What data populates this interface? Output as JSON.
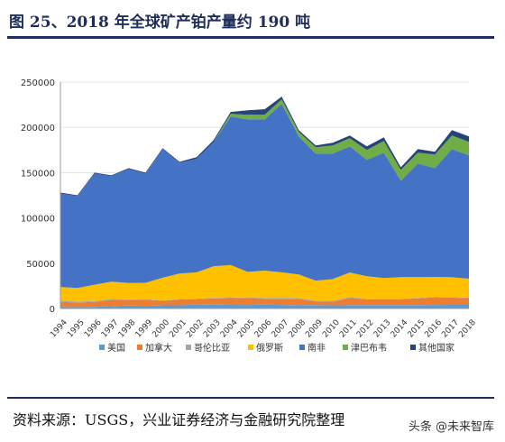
{
  "title": "图 25、2018 年全球矿产铂产量约 190 吨",
  "source": "资料来源：USGS，兴业证券经济与金融研究院整理",
  "watermark": "头条 @未来智库",
  "colors": {
    "series": [
      "#5b9bd5",
      "#ed7d31",
      "#a5a5a5",
      "#ffc000",
      "#4472c4",
      "#70ad47",
      "#264478"
    ]
  },
  "chart_data": {
    "type": "area",
    "stacked": true,
    "x": [
      "1994",
      "1995",
      "1996",
      "1997",
      "1998",
      "1999",
      "2000",
      "2001",
      "2002",
      "2003",
      "2004",
      "2005",
      "2006",
      "2007",
      "2008",
      "2009",
      "2010",
      "2011",
      "2012",
      "2013",
      "2014",
      "2015",
      "2016",
      "2017",
      "2018"
    ],
    "ylim": [
      0,
      250000
    ],
    "yticks": [
      0,
      50000,
      100000,
      150000,
      200000,
      250000
    ],
    "ytick_labels": [
      "0",
      "50000",
      "100000",
      "150000",
      "200000",
      "250000"
    ],
    "legend_position": "bottom",
    "series": [
      {
        "name": "美国",
        "values": [
          1800,
          1600,
          1800,
          2600,
          3200,
          2900,
          3500,
          3500,
          4400,
          4200,
          4000,
          3900,
          4300,
          3900,
          3600,
          3800,
          3500,
          3700,
          3700,
          3700,
          3700,
          3700,
          3900,
          4000,
          4000
        ]
      },
      {
        "name": "加拿大",
        "values": [
          5500,
          5000,
          5500,
          7000,
          6500,
          7000,
          5000,
          6500,
          6000,
          7000,
          7500,
          8000,
          6500,
          7000,
          7000,
          4000,
          4000,
          8000,
          6500,
          6500,
          6500,
          7500,
          8500,
          8000,
          7500
        ]
      },
      {
        "name": "哥伦比亚",
        "values": [
          1500,
          1000,
          1000,
          1000,
          500,
          500,
          500,
          500,
          500,
          500,
          500,
          500,
          1000,
          1000,
          1000,
          1000,
          1000,
          1000,
          500,
          500,
          500,
          500,
          500,
          500,
          500
        ]
      },
      {
        "name": "俄罗斯",
        "values": [
          15000,
          15000,
          18000,
          19000,
          18000,
          18000,
          25000,
          28000,
          29000,
          35000,
          36000,
          28000,
          30000,
          28000,
          26000,
          22000,
          24000,
          27000,
          25000,
          23000,
          24000,
          23000,
          22000,
          22000,
          21000
        ]
      },
      {
        "name": "南非",
        "values": [
          103200,
          101400,
          122700,
          116400,
          125800,
          120600,
          142000,
          122500,
          125100,
          137300,
          164000,
          168600,
          167200,
          186100,
          152400,
          140200,
          138500,
          139300,
          128300,
          138300,
          106300,
          125300,
          120100,
          141500,
          136000
        ]
      },
      {
        "name": "津巴布韦",
        "values": [
          0,
          0,
          0,
          0,
          0,
          0,
          0,
          0,
          0,
          0,
          3000,
          4800,
          5000,
          5000,
          5000,
          7000,
          9000,
          9000,
          11000,
          13000,
          12000,
          12000,
          15000,
          15000,
          15000
        ]
      },
      {
        "name": "其他国家",
        "values": [
          1000,
          1000,
          1000,
          1000,
          1000,
          1000,
          1000,
          1000,
          2000,
          2000,
          2000,
          5000,
          6000,
          3000,
          2000,
          2000,
          3000,
          3000,
          4000,
          4000,
          3000,
          4000,
          3000,
          6000,
          6000
        ]
      }
    ]
  }
}
